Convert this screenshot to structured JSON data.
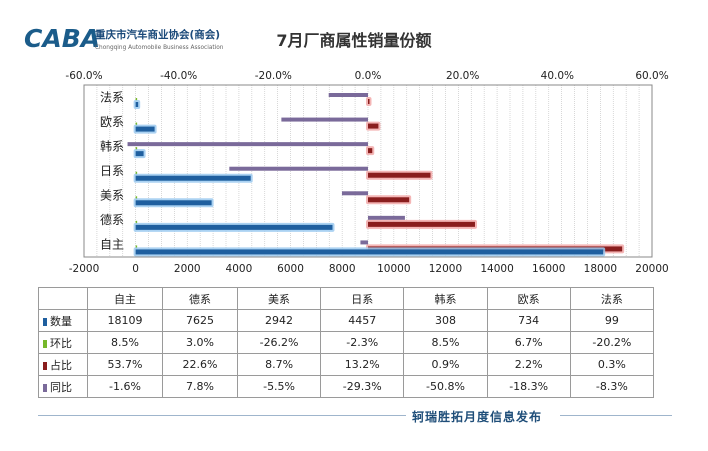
{
  "header": {
    "logo_mark": "CABA",
    "org_name_cn": "重庆市汽车商业协会(商会)",
    "org_name_en": "Chongqing Automobile Business Association",
    "title": "7月厂商属性销量份额"
  },
  "colors": {
    "quantity": "#1f5f9f",
    "quantity_glow": "#9ccaf0",
    "share": "#8a1e1e",
    "share_glow": "#f2a9a9",
    "mom": "#76b82a",
    "yoy": "#7a6a9a"
  },
  "chart_data": {
    "type": "bar",
    "orientation": "horizontal",
    "categories": [
      "法系",
      "欧系",
      "韩系",
      "日系",
      "美系",
      "德系",
      "自主"
    ],
    "series": [
      {
        "name": "数量",
        "axis": "bottom",
        "values": [
          99,
          734,
          308,
          4457,
          2942,
          7625,
          18109
        ]
      },
      {
        "name": "环比",
        "axis": "top",
        "values": [
          -20.2,
          6.7,
          8.5,
          -2.3,
          -26.2,
          3.0,
          8.5
        ]
      },
      {
        "name": "占比",
        "axis": "top",
        "values": [
          0.3,
          2.2,
          0.9,
          13.2,
          8.7,
          22.6,
          53.7
        ]
      },
      {
        "name": "同比",
        "axis": "top",
        "values": [
          -8.3,
          -18.3,
          -50.8,
          -29.3,
          -5.5,
          7.8,
          -1.6
        ]
      }
    ],
    "bottom_axis": {
      "min": -2000,
      "max": 20000,
      "ticks": [
        "-2000",
        "0",
        "2000",
        "4000",
        "6000",
        "8000",
        "10000",
        "12000",
        "14000",
        "16000",
        "18000",
        "20000"
      ]
    },
    "top_axis": {
      "min": -60,
      "max": 60,
      "ticks": [
        "-60.0%",
        "-40.0%",
        "-20.0%",
        "0.0%",
        "20.0%",
        "40.0%",
        "60.0%"
      ]
    },
    "grid": true,
    "legend": "table"
  },
  "table": {
    "columns": [
      "自主",
      "德系",
      "美系",
      "日系",
      "韩系",
      "欧系",
      "法系"
    ],
    "rows": [
      {
        "label": "数量",
        "values": [
          "18109",
          "7625",
          "2942",
          "4457",
          "308",
          "734",
          "99"
        ]
      },
      {
        "label": "环比",
        "values": [
          "8.5%",
          "3.0%",
          "-26.2%",
          "-2.3%",
          "8.5%",
          "6.7%",
          "-20.2%"
        ]
      },
      {
        "label": "占比",
        "values": [
          "53.7%",
          "22.6%",
          "8.7%",
          "13.2%",
          "0.9%",
          "2.2%",
          "0.3%"
        ]
      },
      {
        "label": "同比",
        "values": [
          "-1.6%",
          "7.8%",
          "-5.5%",
          "-29.3%",
          "-50.8%",
          "-18.3%",
          "-8.3%"
        ]
      }
    ]
  },
  "footer": {
    "text": "轲瑞胜拓月度信息发布"
  }
}
